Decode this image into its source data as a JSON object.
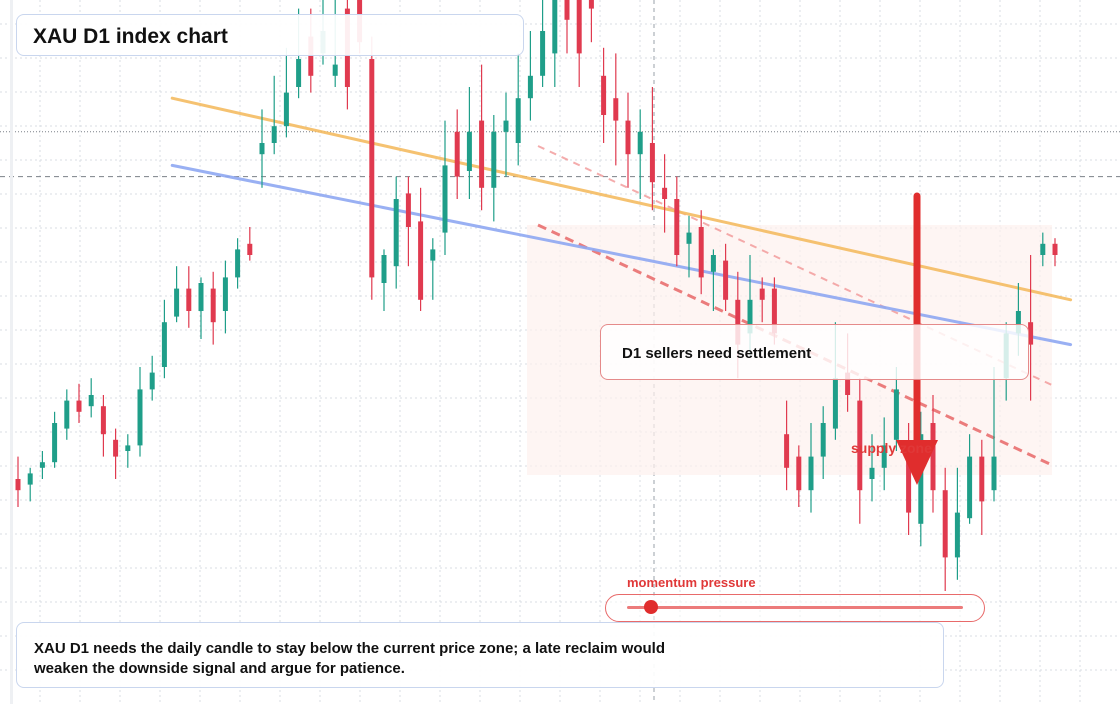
{
  "title": "XAU D1 index chart",
  "callout": "D1 sellers need settlement",
  "supply_label": "supply zone",
  "momentum": {
    "label": "momentum pressure",
    "level": 0.08
  },
  "note": "XAU D1 needs the daily candle to stay below the current price zone; a late reclaim would weaken the downside signal and argue for patience.",
  "colors": {
    "up": "#1f9e89",
    "down": "#e03a4f",
    "orange_trend": "#f5bc62",
    "blue_trend": "#8fa8f2",
    "signal_red": "#e02d2d",
    "grid": "#d9dde3"
  },
  "chart_data": {
    "type": "candlestick",
    "symbol": "XAU",
    "timeframe": "D1",
    "bars": 86,
    "axes_visible": false,
    "ohlc_index_scale": [
      [
        0,
        10,
        8,
        14,
        5
      ],
      [
        1,
        9,
        11,
        12,
        6
      ],
      [
        2,
        12,
        13,
        15,
        10
      ],
      [
        3,
        13,
        20,
        22,
        12
      ],
      [
        4,
        19,
        24,
        26,
        17
      ],
      [
        5,
        24,
        22,
        27,
        20
      ],
      [
        6,
        23,
        25,
        28,
        21
      ],
      [
        7,
        23,
        18,
        25,
        14
      ],
      [
        8,
        17,
        14,
        19,
        10
      ],
      [
        9,
        15,
        16,
        18,
        12
      ],
      [
        10,
        16,
        26,
        30,
        14
      ],
      [
        11,
        26,
        29,
        32,
        24
      ],
      [
        12,
        30,
        38,
        42,
        28
      ],
      [
        13,
        39,
        44,
        48,
        38
      ],
      [
        14,
        44,
        40,
        48,
        37
      ],
      [
        15,
        40,
        45,
        46,
        35
      ],
      [
        16,
        44,
        38,
        47,
        34
      ],
      [
        17,
        40,
        46,
        49,
        36
      ],
      [
        18,
        46,
        51,
        53,
        44
      ],
      [
        19,
        52,
        50,
        55,
        49
      ],
      [
        20,
        68,
        70,
        76,
        62
      ],
      [
        21,
        70,
        73,
        82,
        68
      ],
      [
        22,
        73,
        79,
        87,
        71
      ],
      [
        23,
        80,
        85,
        94,
        78
      ],
      [
        24,
        89,
        82,
        94,
        79
      ],
      [
        25,
        86,
        90,
        96,
        84
      ],
      [
        26,
        82,
        84,
        97,
        80
      ],
      [
        27,
        94,
        80,
        98,
        76
      ],
      [
        28,
        98,
        88,
        99,
        86
      ],
      [
        29,
        85,
        46,
        89,
        42
      ],
      [
        30,
        45,
        50,
        51,
        40
      ],
      [
        31,
        48,
        60,
        64,
        44
      ],
      [
        32,
        61,
        55,
        64,
        48
      ],
      [
        33,
        56,
        42,
        62,
        40
      ],
      [
        34,
        49,
        51,
        53,
        42
      ],
      [
        35,
        54,
        66,
        74,
        50
      ],
      [
        36,
        72,
        64,
        76,
        60
      ],
      [
        37,
        65,
        72,
        80,
        60
      ],
      [
        38,
        74,
        62,
        84,
        58
      ],
      [
        39,
        62,
        72,
        75,
        56
      ],
      [
        40,
        72,
        74,
        79,
        64
      ],
      [
        41,
        70,
        78,
        86,
        66
      ],
      [
        42,
        78,
        82,
        90,
        74
      ],
      [
        43,
        82,
        90,
        96,
        80
      ],
      [
        44,
        86,
        98,
        106,
        80
      ],
      [
        45,
        98,
        92,
        104,
        86
      ],
      [
        46,
        104,
        86,
        111,
        80
      ],
      [
        47,
        100,
        94,
        104,
        88
      ],
      [
        48,
        82,
        75,
        87,
        70
      ],
      [
        49,
        78,
        74,
        86,
        66
      ],
      [
        50,
        74,
        68,
        79,
        62
      ],
      [
        51,
        68,
        72,
        76,
        60
      ],
      [
        52,
        70,
        63,
        80,
        58
      ],
      [
        53,
        62,
        60,
        68,
        54
      ],
      [
        54,
        60,
        50,
        64,
        48
      ],
      [
        55,
        52,
        54,
        57,
        46
      ],
      [
        56,
        55,
        46,
        58,
        43
      ],
      [
        57,
        47,
        50,
        51,
        40
      ],
      [
        58,
        49,
        42,
        52,
        40
      ],
      [
        59,
        42,
        34,
        47,
        28
      ],
      [
        60,
        36,
        42,
        50,
        32
      ],
      [
        61,
        44,
        42,
        46,
        38
      ],
      [
        62,
        44,
        36,
        46,
        34
      ],
      [
        63,
        18,
        12,
        24,
        8
      ],
      [
        64,
        14,
        8,
        16,
        5
      ],
      [
        65,
        8,
        14,
        20,
        4
      ],
      [
        66,
        14,
        20,
        23,
        10
      ],
      [
        67,
        19,
        28,
        38,
        17
      ],
      [
        68,
        29,
        25,
        36,
        22
      ],
      [
        69,
        24,
        8,
        28,
        2
      ],
      [
        70,
        10,
        12,
        18,
        6
      ],
      [
        71,
        12,
        16,
        21,
        8
      ],
      [
        72,
        17,
        26,
        30,
        15
      ],
      [
        73,
        16,
        4,
        20,
        0
      ],
      [
        74,
        2,
        18,
        22,
        -2
      ],
      [
        75,
        20,
        8,
        25,
        4
      ],
      [
        76,
        8,
        -4,
        12,
        -10
      ],
      [
        77,
        -4,
        4,
        12,
        -8
      ],
      [
        78,
        3,
        14,
        18,
        2
      ],
      [
        79,
        14,
        6,
        17,
        0
      ],
      [
        80,
        8,
        14,
        30,
        6
      ],
      [
        81,
        28,
        36,
        38,
        24
      ],
      [
        82,
        36,
        40,
        45,
        32
      ],
      [
        83,
        38,
        34,
        50,
        24
      ],
      [
        84,
        50,
        52,
        54,
        48
      ],
      [
        85,
        52,
        50,
        53,
        48
      ]
    ],
    "trendlines": [
      {
        "from": [
          11,
          78
        ],
        "to": [
          83,
          42
        ]
      },
      {
        "from": [
          11,
          66
        ],
        "to": [
          83,
          34
        ]
      }
    ],
    "price_lines": [
      64,
      72
    ],
    "signal": "down"
  }
}
